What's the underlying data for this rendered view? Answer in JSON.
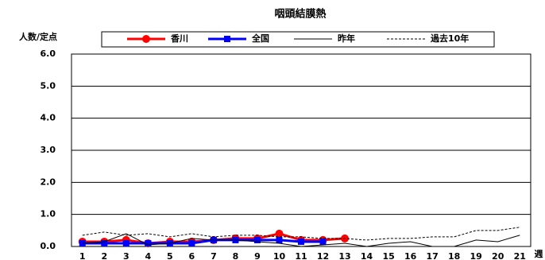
{
  "chart_data": {
    "type": "line",
    "title": "咽頭結膜熱",
    "y_label": "人数/定点",
    "x_label": "週",
    "categories": [
      "1",
      "2",
      "3",
      "4",
      "5",
      "6",
      "7",
      "8",
      "9",
      "10",
      "11",
      "12",
      "13",
      "14",
      "15",
      "16",
      "17",
      "18",
      "19",
      "20",
      "21"
    ],
    "ylim": [
      0,
      6
    ],
    "yticks": [
      {
        "value": 0,
        "label": "0.0"
      },
      {
        "value": 1,
        "label": "1.0"
      },
      {
        "value": 2,
        "label": "2.0"
      },
      {
        "value": 3,
        "label": "3.0"
      },
      {
        "value": 4,
        "label": "4.0"
      },
      {
        "value": 5,
        "label": "5.0"
      },
      {
        "value": 6,
        "label": "6.0"
      }
    ],
    "grid": true,
    "series": [
      {
        "name": "香川",
        "color": "#ff0000",
        "marker": "circle",
        "width": 3,
        "values": [
          0.15,
          0.15,
          0.2,
          0.1,
          0.15,
          0.15,
          0.2,
          0.25,
          0.25,
          0.4,
          0.2,
          0.2,
          0.25,
          null,
          null,
          null,
          null,
          null,
          null,
          null,
          null
        ]
      },
      {
        "name": "全国",
        "color": "#0000ff",
        "marker": "square",
        "width": 3,
        "values": [
          0.1,
          0.1,
          0.1,
          0.1,
          0.1,
          0.1,
          0.2,
          0.2,
          0.2,
          0.2,
          0.15,
          0.15,
          null,
          null,
          null,
          null,
          null,
          null,
          null,
          null,
          null
        ]
      },
      {
        "name": "昨年",
        "color": "#000000",
        "width": 1,
        "values": [
          0.1,
          0.15,
          0.4,
          0.05,
          0.1,
          0.25,
          0.2,
          0.2,
          0.15,
          0.1,
          0.0,
          0.05,
          0.1,
          0.0,
          0.1,
          0.15,
          0.0,
          0.0,
          0.2,
          0.15,
          0.35
        ]
      },
      {
        "name": "過去10年",
        "color": "#000000",
        "dashed": true,
        "width": 1,
        "values": [
          0.35,
          0.45,
          0.35,
          0.4,
          0.3,
          0.4,
          0.3,
          0.35,
          0.35,
          0.3,
          0.3,
          0.25,
          0.25,
          0.2,
          0.25,
          0.25,
          0.3,
          0.3,
          0.5,
          0.5,
          0.6
        ]
      }
    ]
  }
}
